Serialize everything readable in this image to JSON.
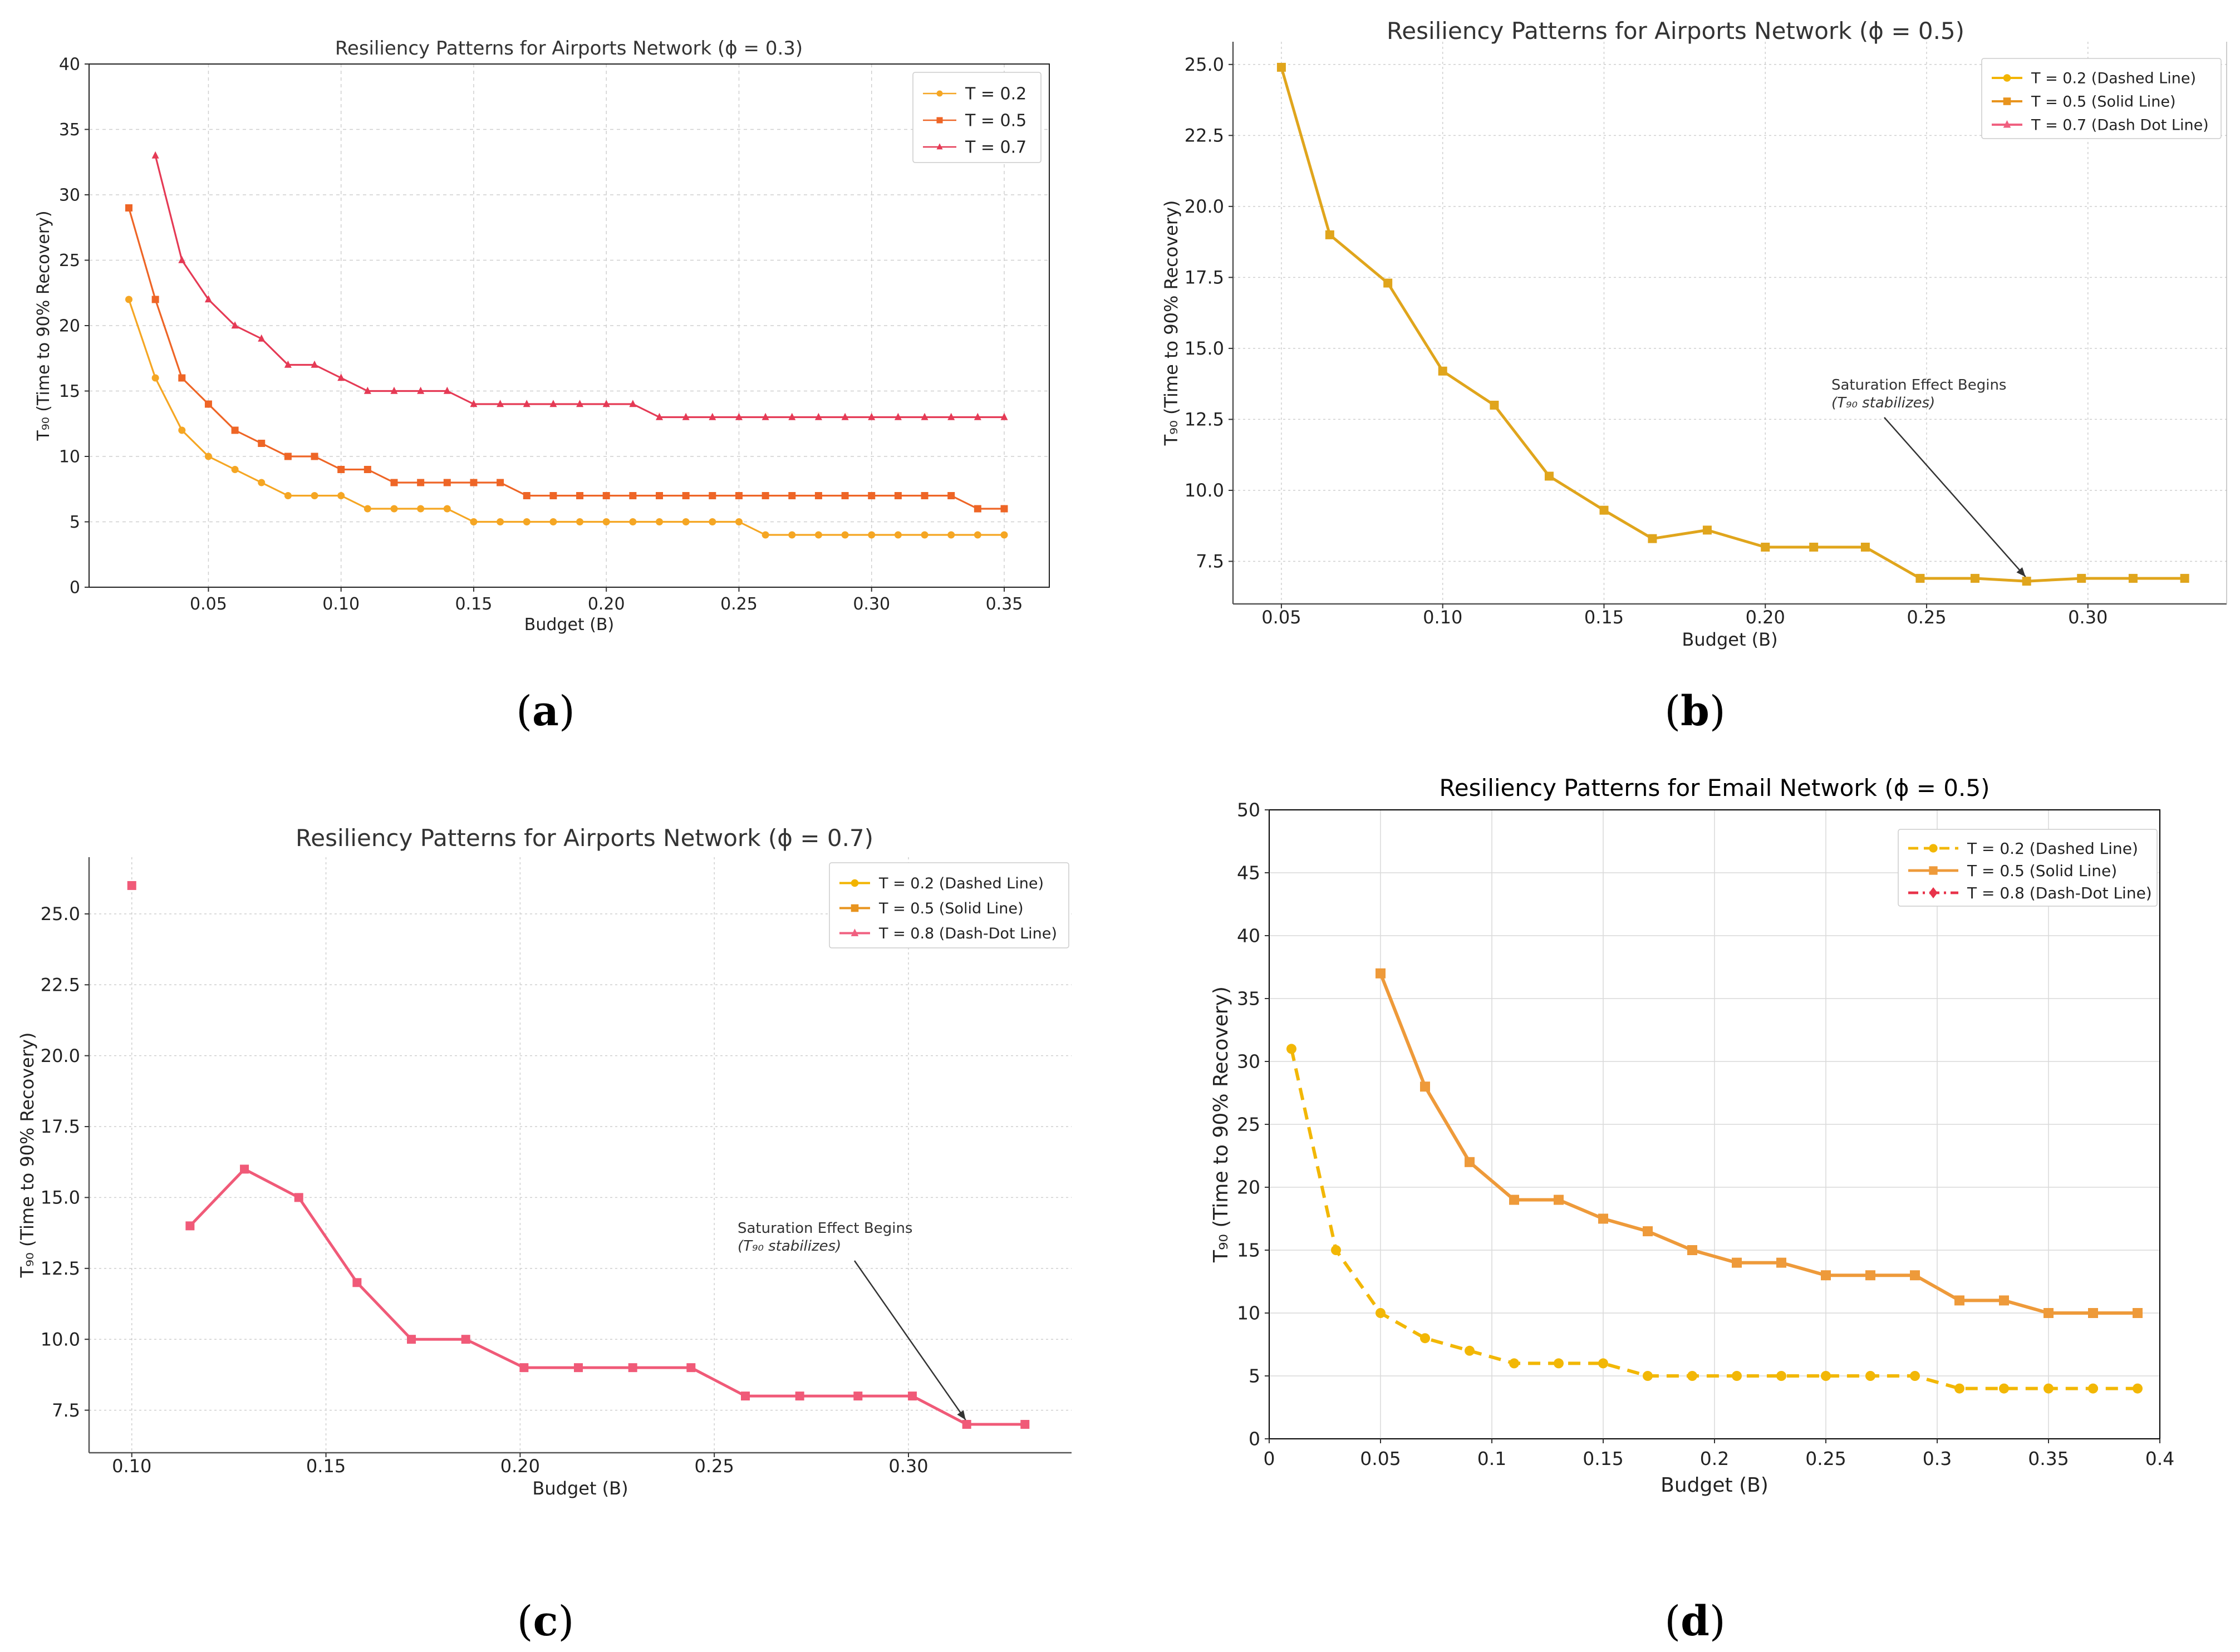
{
  "captions": [
    "(a)",
    "(b)",
    "(c)",
    "(d)"
  ],
  "chart_data": [
    {
      "id": "a",
      "type": "line",
      "title": "Resiliency Patterns for Airports Network (ϕ = 0.3)",
      "xlabel": "Budget (B)",
      "ylabel": "T₉₀ (Time to 90% Recovery)",
      "xlim": [
        0.005,
        0.367
      ],
      "ylim": [
        0,
        40
      ],
      "xticks": [
        0.05,
        0.1,
        0.15,
        0.2,
        0.25,
        0.3,
        0.35
      ],
      "xtick_labels": [
        "0.05",
        "0.10",
        "0.15",
        "0.20",
        "0.25",
        "0.30",
        "0.35"
      ],
      "yticks": [
        0,
        5,
        10,
        15,
        20,
        25,
        30,
        35,
        40
      ],
      "ytick_labels": [
        "0",
        "5",
        "10",
        "15",
        "20",
        "25",
        "30",
        "35",
        "40"
      ],
      "grid": true,
      "legend": "top-right",
      "series": [
        {
          "name": "T = 0.2",
          "color": "#F5A623",
          "marker": "circle",
          "x": [
            0.02,
            0.03,
            0.04,
            0.05,
            0.06,
            0.07,
            0.08,
            0.09,
            0.1,
            0.11,
            0.12,
            0.13,
            0.14,
            0.15,
            0.16,
            0.17,
            0.18,
            0.19,
            0.2,
            0.21,
            0.22,
            0.23,
            0.24,
            0.25,
            0.26,
            0.27,
            0.28,
            0.29,
            0.3,
            0.31,
            0.32,
            0.33,
            0.34,
            0.35
          ],
          "y": [
            22,
            16,
            12,
            10,
            9,
            8,
            7,
            7,
            7,
            6,
            6,
            6,
            6,
            5,
            5,
            5,
            5,
            5,
            5,
            5,
            5,
            5,
            5,
            5,
            4,
            4,
            4,
            4,
            4,
            4,
            4,
            4,
            4,
            4
          ]
        },
        {
          "name": "T = 0.5",
          "color": "#EE6526",
          "marker": "square",
          "x": [
            0.02,
            0.03,
            0.04,
            0.05,
            0.06,
            0.07,
            0.08,
            0.09,
            0.1,
            0.11,
            0.12,
            0.13,
            0.14,
            0.15,
            0.16,
            0.17,
            0.18,
            0.19,
            0.2,
            0.21,
            0.22,
            0.23,
            0.24,
            0.25,
            0.26,
            0.27,
            0.28,
            0.29,
            0.3,
            0.31,
            0.32,
            0.33,
            0.34,
            0.35
          ],
          "y": [
            29,
            22,
            16,
            14,
            12,
            11,
            10,
            10,
            9,
            9,
            8,
            8,
            8,
            8,
            8,
            7,
            7,
            7,
            7,
            7,
            7,
            7,
            7,
            7,
            7,
            7,
            7,
            7,
            7,
            7,
            7,
            7,
            6,
            6
          ]
        },
        {
          "name": "T = 0.7",
          "color": "#E53A55",
          "marker": "triangle",
          "x": [
            0.03,
            0.04,
            0.05,
            0.06,
            0.07,
            0.08,
            0.09,
            0.1,
            0.11,
            0.12,
            0.13,
            0.14,
            0.15,
            0.16,
            0.17,
            0.18,
            0.19,
            0.2,
            0.21,
            0.22,
            0.23,
            0.24,
            0.25,
            0.26,
            0.27,
            0.28,
            0.29,
            0.3,
            0.31,
            0.32,
            0.33,
            0.34,
            0.35
          ],
          "y": [
            33,
            25,
            22,
            20,
            19,
            17,
            17,
            16,
            15,
            15,
            15,
            15,
            14,
            14,
            14,
            14,
            14,
            14,
            14,
            13,
            13,
            13,
            13,
            13,
            13,
            13,
            13,
            13,
            13,
            13,
            13,
            13,
            13
          ]
        }
      ]
    },
    {
      "id": "b",
      "type": "line",
      "title": "Resiliency Patterns for Airports Network (ϕ = 0.5)",
      "xlabel": "Budget (B)",
      "ylabel": "T₉₀ (Time to 90% Recovery)",
      "xlim": [
        0.035,
        0.343
      ],
      "ylim": [
        6.0,
        25.8
      ],
      "xticks": [
        0.05,
        0.1,
        0.15,
        0.2,
        0.25,
        0.3
      ],
      "xtick_labels": [
        "0.05",
        "0.10",
        "0.15",
        "0.20",
        "0.25",
        "0.30"
      ],
      "yticks": [
        7.5,
        10.0,
        12.5,
        15.0,
        17.5,
        20.0,
        22.5,
        25.0
      ],
      "ytick_labels": [
        "7.5",
        "10.0",
        "12.5",
        "15.0",
        "17.5",
        "20.0",
        "22.5",
        "25.0"
      ],
      "grid": true,
      "legend": "top-right",
      "series": [
        {
          "name": "T = 0.2 (Dashed Line)",
          "color": "#F2B400",
          "marker": "circle",
          "x": [],
          "y": []
        },
        {
          "name": "T = 0.5 (Solid Line)",
          "color": "#E8941E",
          "marker": "square",
          "x": [],
          "y": []
        },
        {
          "name": "T = 0.7 (Dash Dot Line)",
          "color": "#F06080",
          "marker": "triangle",
          "x": [],
          "y": []
        },
        {
          "name": "curve",
          "color": "#E0A51C",
          "marker": "square",
          "in_legend": false,
          "x": [
            0.05,
            0.065,
            0.083,
            0.1,
            0.116,
            0.133,
            0.15,
            0.165,
            0.182,
            0.2,
            0.215,
            0.231,
            0.248,
            0.265,
            0.281,
            0.298,
            0.314,
            0.33
          ],
          "y": [
            24.9,
            19.0,
            17.3,
            14.2,
            13.0,
            10.5,
            9.3,
            8.3,
            8.6,
            8.0,
            8.0,
            8.0,
            6.9,
            6.9,
            6.8,
            6.9,
            6.9,
            6.9
          ]
        }
      ],
      "annotation": {
        "line1": "Saturation Effect Begins",
        "line2": "(T₉₀ stabilizes)",
        "arrow_to_x": 0.281,
        "arrow_to_y": 6.8
      }
    },
    {
      "id": "c",
      "type": "line",
      "title": "Resiliency Patterns for Airports Network (ϕ = 0.7)",
      "xlabel": "Budget (B)",
      "ylabel": "T₉₀ (Time to 90% Recovery)",
      "xlim": [
        0.089,
        0.342
      ],
      "ylim": [
        6.0,
        27.0
      ],
      "xticks": [
        0.1,
        0.15,
        0.2,
        0.25,
        0.3
      ],
      "xtick_labels": [
        "0.10",
        "0.15",
        "0.20",
        "0.25",
        "0.30"
      ],
      "yticks": [
        7.5,
        10.0,
        12.5,
        15.0,
        17.5,
        20.0,
        22.5,
        25.0
      ],
      "ytick_labels": [
        "7.5",
        "10.0",
        "12.5",
        "15.0",
        "17.5",
        "20.0",
        "22.5",
        "25.0"
      ],
      "grid": true,
      "legend": "top-right",
      "series": [
        {
          "name": "T = 0.2 (Dashed Line)",
          "color": "#F2B400",
          "marker": "circle",
          "x": [],
          "y": []
        },
        {
          "name": "T = 0.5 (Solid Line)",
          "color": "#E8941E",
          "marker": "square",
          "x": [],
          "y": []
        },
        {
          "name": "T = 0.8 (Dash-Dot Line)",
          "color": "#F06080",
          "marker": "triangle",
          "x": [],
          "y": []
        },
        {
          "name": "first point",
          "color": "#F05A78",
          "marker": "square",
          "in_legend": false,
          "x": [
            0.1
          ],
          "y": [
            26
          ]
        },
        {
          "name": "curve",
          "color": "#F05A78",
          "marker": "square",
          "in_legend": false,
          "x": [
            0.115,
            0.129,
            0.143,
            0.158,
            0.172,
            0.186,
            0.201,
            0.215,
            0.229,
            0.244,
            0.258,
            0.272,
            0.287,
            0.301,
            0.315,
            0.33
          ],
          "y": [
            14,
            16,
            15,
            12,
            10,
            10,
            9,
            9,
            9,
            9,
            8,
            8,
            8,
            8,
            7,
            7
          ]
        }
      ],
      "annotation": {
        "line1": "Saturation Effect Begins",
        "line2": "(T₉₀ stabilizes)",
        "arrow_to_x": 0.315,
        "arrow_to_y": 7.0
      }
    },
    {
      "id": "d",
      "type": "line",
      "title": "Resiliency Patterns for Email Network (ϕ = 0.5)",
      "xlabel": "Budget (B)",
      "ylabel": "T₉₀ (Time to 90% Recovery)",
      "xlim": [
        0,
        0.4
      ],
      "ylim": [
        0,
        50
      ],
      "xticks": [
        0,
        0.05,
        0.1,
        0.15,
        0.2,
        0.25,
        0.3,
        0.35,
        0.4
      ],
      "xtick_labels": [
        "0",
        "0.05",
        "0.1",
        "0.15",
        "0.2",
        "0.25",
        "0.3",
        "0.35",
        "0.4"
      ],
      "yticks": [
        0,
        5,
        10,
        15,
        20,
        25,
        30,
        35,
        40,
        45,
        50
      ],
      "ytick_labels": [
        "0",
        "5",
        "10",
        "15",
        "20",
        "25",
        "30",
        "35",
        "40",
        "45",
        "50"
      ],
      "grid": true,
      "legend": "top-right",
      "series": [
        {
          "name": "T = 0.2 (Dashed Line)",
          "color": "#F2B705",
          "marker": "circle",
          "dash": "dashed",
          "x": [
            0.01,
            0.03,
            0.05,
            0.07,
            0.09,
            0.11,
            0.13,
            0.15,
            0.17,
            0.19,
            0.21,
            0.23,
            0.25,
            0.27,
            0.29,
            0.31,
            0.33,
            0.35,
            0.37,
            0.39
          ],
          "y": [
            31,
            15,
            10,
            8,
            7,
            6,
            6,
            6,
            5,
            5,
            5,
            5,
            5,
            5,
            5,
            4,
            4,
            4,
            4,
            4
          ]
        },
        {
          "name": "T = 0.5 (Solid Line)",
          "color": "#EE9A3A",
          "marker": "square",
          "x": [
            0.05,
            0.07,
            0.09,
            0.11,
            0.13,
            0.15,
            0.17,
            0.19,
            0.21,
            0.23,
            0.25,
            0.27,
            0.29,
            0.31,
            0.33,
            0.35,
            0.37,
            0.39
          ],
          "y": [
            37,
            28,
            22,
            19,
            19,
            17.5,
            16.5,
            15,
            14,
            14,
            13,
            13,
            13,
            11,
            11,
            10,
            10,
            10
          ]
        },
        {
          "name": "T = 0.8 (Dash-Dot Line)",
          "color": "#E8334A",
          "marker": "diamond",
          "dash": "dashdot",
          "x": [],
          "y": []
        }
      ]
    }
  ]
}
